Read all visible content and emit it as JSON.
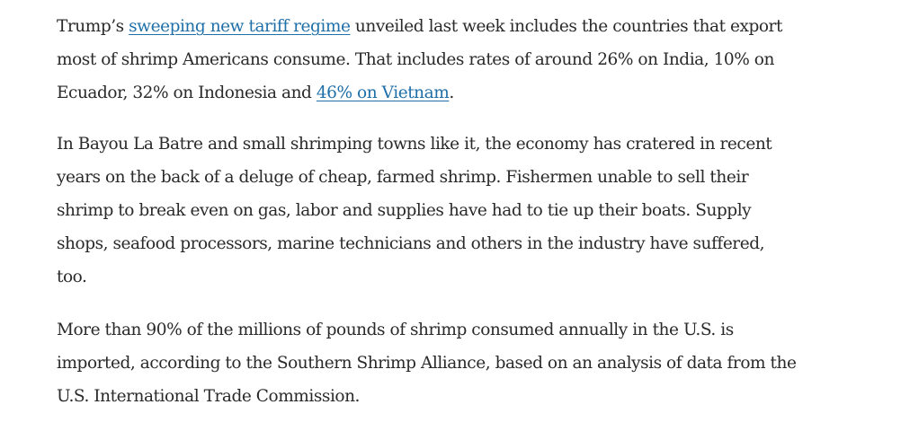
{
  "article": {
    "p1": {
      "l1_pre": "Trump’s ",
      "l1_link": "sweeping new tariff regime",
      "l1_post": " unveiled last week includes the countries that export",
      "l2": "most of shrimp Americans consume. That includes rates of around 26% on India, 10% on",
      "l3_pre": "Ecuador, 32% on Indonesia and ",
      "l3_link": "46% on Vietnam",
      "l3_post": "."
    },
    "p2": {
      "lines": [
        "In Bayou La Batre and small shrimping towns like it, the economy has cratered in recent",
        "years on the back of a deluge of cheap, farmed shrimp. Fishermen unable to sell their",
        "shrimp to break even on gas, labor and supplies have had to tie up their boats. Supply",
        "shops, seafood processors, marine technicians and others in the industry have suffered,",
        "too."
      ]
    },
    "p3": {
      "lines": [
        "More than 90% of the millions of pounds of shrimp consumed annually in the U.S. is",
        "imported, according to the Southern Shrimp Alliance, based on an analysis of data from the",
        "U.S. International Trade Commission."
      ]
    }
  },
  "colors": {
    "text": "#2a2a2a",
    "link": "#1f6fa8",
    "background": "#ffffff"
  }
}
